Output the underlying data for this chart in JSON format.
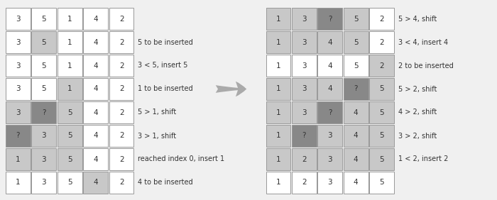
{
  "left_rows": [
    {
      "cells": [
        "3",
        "5",
        "1",
        "4",
        "2"
      ],
      "colors": [
        "white",
        "white",
        "white",
        "white",
        "white"
      ],
      "label": ""
    },
    {
      "cells": [
        "3",
        "5",
        "1",
        "4",
        "2"
      ],
      "colors": [
        "white",
        "lgray",
        "white",
        "white",
        "white"
      ],
      "label": "5 to be inserted"
    },
    {
      "cells": [
        "3",
        "5",
        "1",
        "4",
        "2"
      ],
      "colors": [
        "white",
        "white",
        "white",
        "white",
        "white"
      ],
      "label": "3 < 5, insert 5"
    },
    {
      "cells": [
        "3",
        "5",
        "1",
        "4",
        "2"
      ],
      "colors": [
        "white",
        "white",
        "lgray",
        "white",
        "white"
      ],
      "label": "1 to be inserted"
    },
    {
      "cells": [
        "3",
        "?",
        "5",
        "4",
        "2"
      ],
      "colors": [
        "lgray",
        "dgray",
        "lgray",
        "white",
        "white"
      ],
      "label": "5 > 1, shift"
    },
    {
      "cells": [
        "?",
        "3",
        "5",
        "4",
        "2"
      ],
      "colors": [
        "dgray",
        "lgray",
        "lgray",
        "white",
        "white"
      ],
      "label": "3 > 1, shift"
    },
    {
      "cells": [
        "1",
        "3",
        "5",
        "4",
        "2"
      ],
      "colors": [
        "lgray",
        "lgray",
        "lgray",
        "white",
        "white"
      ],
      "label": "reached index 0, insert 1"
    },
    {
      "cells": [
        "1",
        "3",
        "5",
        "4",
        "2"
      ],
      "colors": [
        "white",
        "white",
        "white",
        "lgray",
        "white"
      ],
      "label": "4 to be inserted"
    }
  ],
  "right_rows": [
    {
      "cells": [
        "1",
        "3",
        "?",
        "5",
        "2"
      ],
      "colors": [
        "lgray",
        "lgray",
        "dgray",
        "lgray",
        "white"
      ],
      "label": "5 > 4, shift"
    },
    {
      "cells": [
        "1",
        "3",
        "4",
        "5",
        "2"
      ],
      "colors": [
        "lgray",
        "lgray",
        "lgray",
        "lgray",
        "white"
      ],
      "label": "3 < 4, insert 4"
    },
    {
      "cells": [
        "1",
        "3",
        "4",
        "5",
        "2"
      ],
      "colors": [
        "white",
        "white",
        "white",
        "white",
        "lgray"
      ],
      "label": "2 to be inserted"
    },
    {
      "cells": [
        "1",
        "3",
        "4",
        "?",
        "5"
      ],
      "colors": [
        "lgray",
        "lgray",
        "lgray",
        "dgray",
        "lgray"
      ],
      "label": "5 > 2, shift"
    },
    {
      "cells": [
        "1",
        "3",
        "?",
        "4",
        "5"
      ],
      "colors": [
        "lgray",
        "lgray",
        "dgray",
        "lgray",
        "lgray"
      ],
      "label": "4 > 2, shift"
    },
    {
      "cells": [
        "1",
        "?",
        "3",
        "4",
        "5"
      ],
      "colors": [
        "lgray",
        "dgray",
        "lgray",
        "lgray",
        "lgray"
      ],
      "label": "3 > 2, shift"
    },
    {
      "cells": [
        "1",
        "2",
        "3",
        "4",
        "5"
      ],
      "colors": [
        "lgray",
        "lgray",
        "lgray",
        "lgray",
        "lgray"
      ],
      "label": "1 < 2, insert 2"
    },
    {
      "cells": [
        "1",
        "2",
        "3",
        "4",
        "5"
      ],
      "colors": [
        "white",
        "white",
        "white",
        "white",
        "white"
      ],
      "label": ""
    }
  ],
  "color_map": {
    "white": "#ffffff",
    "lgray": "#c8c8c8",
    "dgray": "#888888"
  },
  "cell_border": "#999999",
  "background": "#f0f0f0",
  "arrow_color": "#aaaaaa",
  "text_color": "#333333",
  "font_size": 7.5,
  "ncols": 5,
  "nrows": 8
}
